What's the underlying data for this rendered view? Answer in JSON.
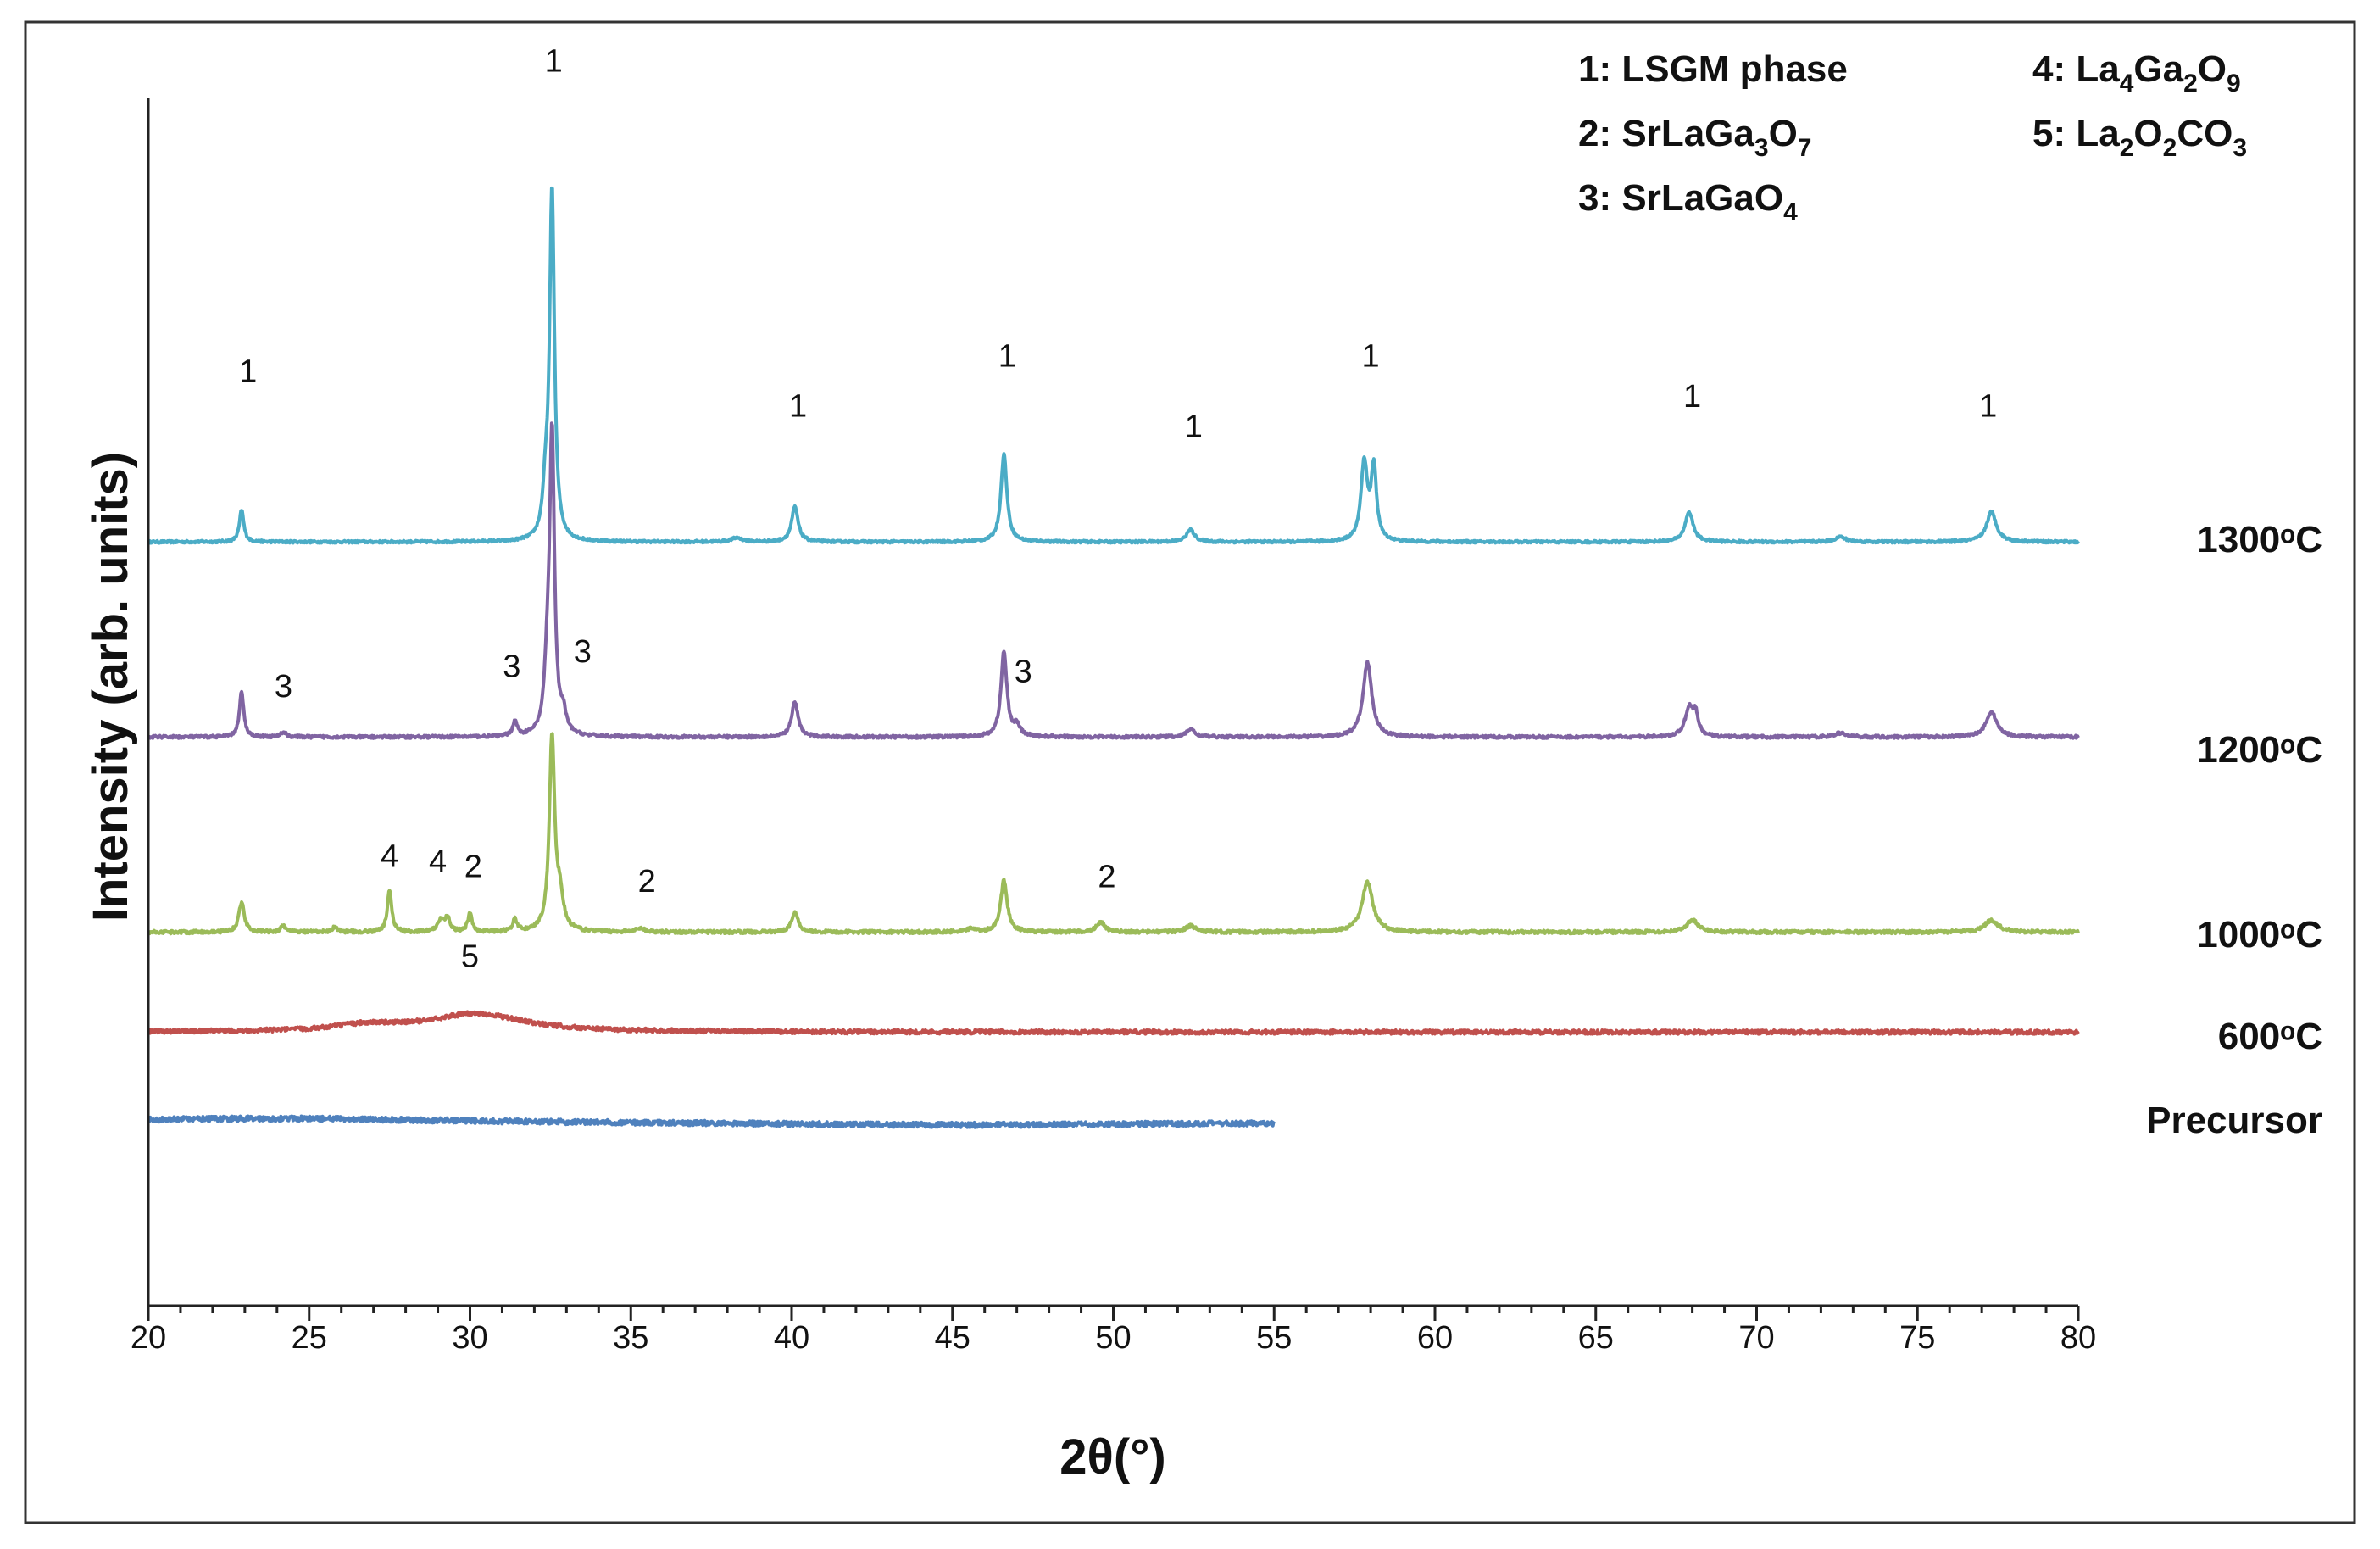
{
  "chart_data": {
    "type": "line",
    "xlabel": "2θ(°)",
    "ylabel": "Intensity (arb. units)",
    "xlim": [
      20,
      80
    ],
    "x_ticks": [
      "20",
      "25",
      "30",
      "35",
      "40",
      "45",
      "50",
      "55",
      "60",
      "65",
      "70",
      "75",
      "80"
    ],
    "grid": false,
    "legend_placement": "top-right",
    "legend": [
      {
        "number": "1",
        "parts": [
          [
            "LSGM phase",
            ""
          ]
        ]
      },
      {
        "number": "2",
        "parts": [
          [
            "SrLaGa",
            "3"
          ],
          [
            "O",
            "7"
          ]
        ]
      },
      {
        "number": "3",
        "parts": [
          [
            "SrLaGaO",
            "4"
          ]
        ]
      },
      {
        "number": "4",
        "parts": [
          [
            "La",
            "4"
          ],
          [
            "Ga",
            "2"
          ],
          [
            "O",
            "9"
          ]
        ]
      },
      {
        "number": "5",
        "parts": [
          [
            "La",
            "2"
          ],
          [
            "O",
            "2"
          ],
          [
            "CO",
            "3"
          ]
        ]
      }
    ],
    "series": [
      {
        "name": "1300°C",
        "label": "1300ᵒC",
        "color": "#4BACC6",
        "x_range": [
          20,
          80
        ],
        "offset": 3.6,
        "noise": 0.012,
        "peaks": [
          [
            22.9,
            0.32,
            0.08
          ],
          [
            32.55,
            3.5,
            0.09
          ],
          [
            32.35,
            0.4,
            0.1
          ],
          [
            40.1,
            0.35,
            0.12
          ],
          [
            46.6,
            0.88,
            0.11
          ],
          [
            52.4,
            0.12,
            0.15
          ],
          [
            57.8,
            0.78,
            0.12
          ],
          [
            58.1,
            0.72,
            0.1
          ],
          [
            67.9,
            0.3,
            0.15
          ],
          [
            77.3,
            0.3,
            0.18
          ],
          [
            38.3,
            0.04,
            0.2
          ],
          [
            72.6,
            0.05,
            0.2
          ]
        ]
      },
      {
        "name": "1200°C",
        "label": "1200ᵒC",
        "color": "#8064A2",
        "x_range": [
          20,
          80
        ],
        "offset": 1.65,
        "noise": 0.014,
        "peaks": [
          [
            22.9,
            0.45,
            0.08
          ],
          [
            32.55,
            3.0,
            0.09
          ],
          [
            32.4,
            0.5,
            0.1
          ],
          [
            31.4,
            0.15,
            0.08
          ],
          [
            32.9,
            0.18,
            0.1
          ],
          [
            24.2,
            0.05,
            0.1
          ],
          [
            40.1,
            0.35,
            0.12
          ],
          [
            46.6,
            0.85,
            0.11
          ],
          [
            47.0,
            0.1,
            0.12
          ],
          [
            52.4,
            0.08,
            0.15
          ],
          [
            57.9,
            0.75,
            0.16
          ],
          [
            67.9,
            0.28,
            0.15
          ],
          [
            68.1,
            0.2,
            0.1
          ],
          [
            77.3,
            0.25,
            0.2
          ],
          [
            72.6,
            0.04,
            0.2
          ]
        ]
      },
      {
        "name": "1000°C",
        "label": "1000ᵒC",
        "color": "#9BBB59",
        "x_range": [
          20,
          80
        ],
        "offset": -0.3,
        "noise": 0.016,
        "peaks": [
          [
            22.9,
            0.3,
            0.1
          ],
          [
            24.2,
            0.06,
            0.1
          ],
          [
            25.8,
            0.05,
            0.1
          ],
          [
            27.5,
            0.42,
            0.08
          ],
          [
            29.1,
            0.12,
            0.12
          ],
          [
            29.3,
            0.14,
            0.08
          ],
          [
            30.0,
            0.18,
            0.08
          ],
          [
            31.4,
            0.12,
            0.08
          ],
          [
            32.55,
            1.95,
            0.1
          ],
          [
            32.8,
            0.3,
            0.12
          ],
          [
            35.3,
            0.04,
            0.15
          ],
          [
            40.1,
            0.2,
            0.12
          ],
          [
            45.6,
            0.04,
            0.12
          ],
          [
            46.6,
            0.52,
            0.12
          ],
          [
            49.6,
            0.1,
            0.15
          ],
          [
            52.4,
            0.06,
            0.2
          ],
          [
            57.9,
            0.5,
            0.2
          ],
          [
            68.0,
            0.12,
            0.22
          ],
          [
            77.3,
            0.12,
            0.25
          ]
        ]
      },
      {
        "name": "600°C",
        "label": "600ᵒC",
        "color": "#C0504D",
        "x_range": [
          20,
          80
        ],
        "offset": -1.3,
        "noise": 0.02,
        "peaks": [
          [
            30.2,
            0.18,
            1.8
          ],
          [
            26.8,
            0.06,
            1.2
          ]
        ]
      },
      {
        "name": "Precursor",
        "label": "Precursor",
        "color": "#4F81BD",
        "x_range": [
          20,
          55
        ],
        "offset": -2.2,
        "noise": 0.025,
        "peaks": [
          [
            24,
            0.04,
            6
          ],
          [
            45,
            -0.03,
            8
          ]
        ]
      }
    ],
    "annotations": [
      {
        "text": "1",
        "x": 23.1,
        "y": 5.2
      },
      {
        "text": "1",
        "x": 32.6,
        "y": 8.3
      },
      {
        "text": "1",
        "x": 40.2,
        "y": 4.85
      },
      {
        "text": "1",
        "x": 46.7,
        "y": 5.35
      },
      {
        "text": "1",
        "x": 52.5,
        "y": 4.65
      },
      {
        "text": "1",
        "x": 58.0,
        "y": 5.35
      },
      {
        "text": "1",
        "x": 68.0,
        "y": 4.95
      },
      {
        "text": "1",
        "x": 77.2,
        "y": 4.85
      },
      {
        "text": "3",
        "x": 24.2,
        "y": 2.05
      },
      {
        "text": "3",
        "x": 31.3,
        "y": 2.25
      },
      {
        "text": "3",
        "x": 33.5,
        "y": 2.4
      },
      {
        "text": "3",
        "x": 47.2,
        "y": 2.2
      },
      {
        "text": "4",
        "x": 27.5,
        "y": 0.35
      },
      {
        "text": "4",
        "x": 29.0,
        "y": 0.3
      },
      {
        "text": "2",
        "x": 30.1,
        "y": 0.25
      },
      {
        "text": "2",
        "x": 35.5,
        "y": 0.1
      },
      {
        "text": "2",
        "x": 49.8,
        "y": 0.15
      },
      {
        "text": "5",
        "x": 30.0,
        "y": -0.65
      }
    ]
  }
}
